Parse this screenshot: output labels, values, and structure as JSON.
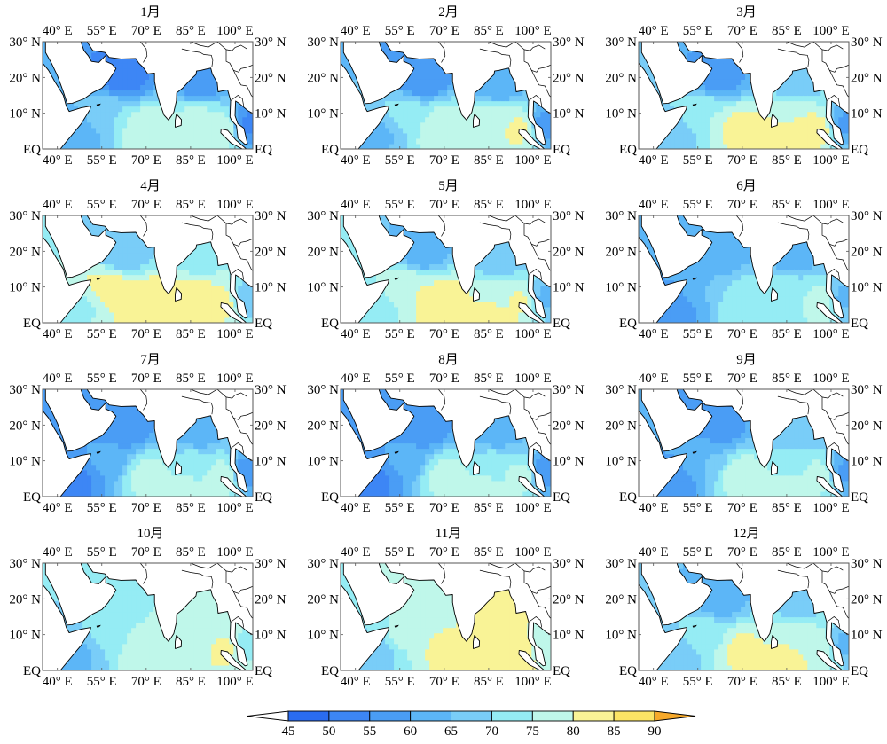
{
  "chart_data": {
    "type": "heatmap",
    "title": "",
    "description": "Monthly climatological maps of a scalar field over the northern Indian Ocean (filled contours), 12 panels, shared colorbar",
    "panel_titles": [
      "1月",
      "2月",
      "3月",
      "4月",
      "5月",
      "6月",
      "7月",
      "8月",
      "9月",
      "10月",
      "11月",
      "12月"
    ],
    "lon_ticks": [
      "40° E",
      "55° E",
      "70° E",
      "85° E",
      "100° E"
    ],
    "lon_tick_values": [
      40,
      55,
      70,
      85,
      100
    ],
    "lat_ticks": [
      "EQ",
      "10° N",
      "20° N",
      "30° N"
    ],
    "lat_tick_values": [
      0,
      10,
      20,
      30
    ],
    "xlim": [
      35,
      106
    ],
    "ylim": [
      0,
      30
    ],
    "colorbar": {
      "levels": [
        45,
        50,
        55,
        60,
        65,
        70,
        75,
        80,
        85,
        90
      ],
      "tick_labels": [
        "45",
        "50",
        "55",
        "60",
        "65",
        "70",
        "75",
        "80",
        "85",
        "90"
      ],
      "colors": [
        "#2a6cf0",
        "#3d86f5",
        "#4a9df5",
        "#5cb6f7",
        "#79cdf8",
        "#95ecf4",
        "#bff7ea",
        "#f9f396",
        "#fbe465"
      ],
      "under_color": "#ffffff",
      "over_color": "#f7a92a",
      "extend": "both",
      "placement": "bottom"
    },
    "regional_levels_summary": [
      {
        "month": "1月",
        "arabian_sea_north": 52,
        "arabian_sea_south": 70,
        "central_io": 80,
        "bay_of_bengal_north": 57,
        "bay_of_bengal_south": 76,
        "andaman": 80
      },
      {
        "month": "2月",
        "arabian_sea_north": 55,
        "arabian_sea_south": 72,
        "central_io": 80,
        "bay_of_bengal_north": 60,
        "bay_of_bengal_south": 77,
        "andaman": 82
      },
      {
        "month": "3月",
        "arabian_sea_north": 57,
        "arabian_sea_south": 75,
        "central_io": 82,
        "bay_of_bengal_north": 67,
        "bay_of_bengal_south": 80,
        "andaman": 83
      },
      {
        "month": "4月",
        "arabian_sea_north": 65,
        "arabian_sea_south": 82,
        "central_io": 84,
        "bay_of_bengal_north": 72,
        "bay_of_bengal_south": 81,
        "andaman": 82
      },
      {
        "month": "5月",
        "arabian_sea_north": 62,
        "arabian_sea_south": 80,
        "central_io": 84,
        "bay_of_bengal_north": 65,
        "bay_of_bengal_south": 76,
        "andaman": 81
      },
      {
        "month": "6月",
        "arabian_sea_north": 62,
        "arabian_sea_south": 65,
        "central_io": 74,
        "bay_of_bengal_north": 63,
        "bay_of_bengal_south": 72,
        "andaman": 80
      },
      {
        "month": "7月",
        "arabian_sea_north": 55,
        "arabian_sea_south": 62,
        "central_io": 77,
        "bay_of_bengal_north": 62,
        "bay_of_bengal_south": 72,
        "andaman": 80
      },
      {
        "month": "8月",
        "arabian_sea_north": 55,
        "arabian_sea_south": 62,
        "central_io": 77,
        "bay_of_bengal_north": 62,
        "bay_of_bengal_south": 72,
        "andaman": 78
      },
      {
        "month": "9月",
        "arabian_sea_north": 57,
        "arabian_sea_south": 65,
        "central_io": 78,
        "bay_of_bengal_north": 67,
        "bay_of_bengal_south": 72,
        "andaman": 78
      },
      {
        "month": "10月",
        "arabian_sea_north": 72,
        "arabian_sea_south": 72,
        "central_io": 80,
        "bay_of_bengal_north": 80,
        "bay_of_bengal_south": 76,
        "andaman": 81
      },
      {
        "month": "11月",
        "arabian_sea_north": 75,
        "arabian_sea_south": 76,
        "central_io": 81,
        "bay_of_bengal_north": 82,
        "bay_of_bengal_south": 80,
        "andaman": 82
      },
      {
        "month": "12月",
        "arabian_sea_north": 62,
        "arabian_sea_south": 73,
        "central_io": 81,
        "bay_of_bengal_north": 68,
        "bay_of_bengal_south": 80,
        "andaman": 80
      }
    ]
  }
}
